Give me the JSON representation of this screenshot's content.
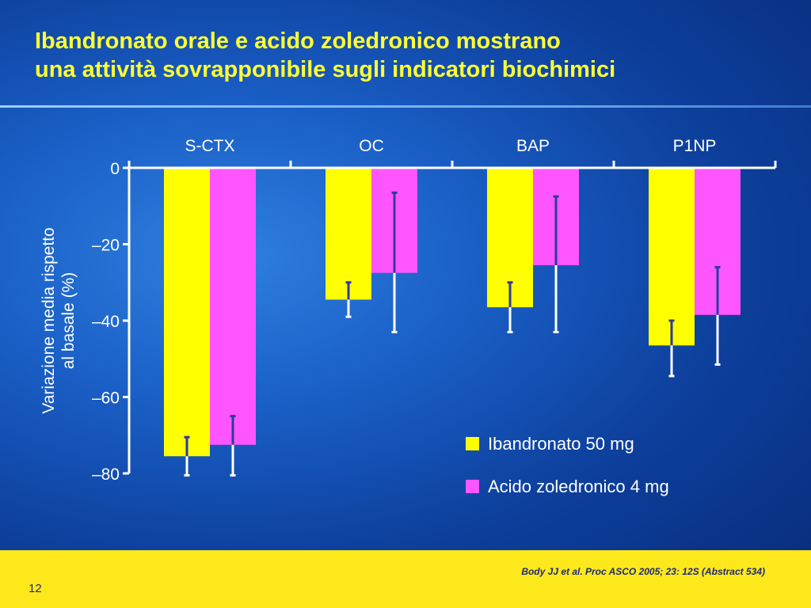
{
  "slide": {
    "title_line1": "Ibandronato orale e acido zoledronico mostrano",
    "title_line2": "una attività sovrapponibile sugli indicatori biochimici",
    "source": "Body JJ et al. Proc ASCO 2005; 23: 12S (Abstract 534)",
    "page_number": "12"
  },
  "colors": {
    "series_1": "#ffff00",
    "series_2": "#ff55ff",
    "error_bar_on_yellow": "#2e3a9e",
    "error_bar_on_blue": "#ffffff",
    "axis": "#ffffff",
    "title": "#ffff33"
  },
  "chart_data": {
    "type": "bar",
    "categories": [
      "S-CTX",
      "OC",
      "BAP",
      "P1NP"
    ],
    "ylabel_line1": "Variazione media rispetto",
    "ylabel_line2": "al basale (%)",
    "ylim": [
      -80,
      0
    ],
    "yticks": [
      0,
      -20,
      -40,
      -60,
      -80
    ],
    "ytick_labels": [
      "0",
      "–20",
      "–40",
      "–60",
      "–80"
    ],
    "grid": false,
    "legend_position": "bottom-right",
    "series": [
      {
        "name": "Ibandronato 50 mg",
        "values": [
          -75.5,
          -34.5,
          -36.5,
          -46.5
        ],
        "error_low": [
          -80.5,
          -39,
          -43,
          -54.5
        ],
        "error_high": [
          -70.5,
          -30,
          -30,
          -40
        ]
      },
      {
        "name": "Acido zoledronico 4 mg",
        "values": [
          -72.5,
          -27.5,
          -25.5,
          -38.5
        ],
        "error_low": [
          -80.5,
          -43,
          -43,
          -51.5
        ],
        "error_high": [
          -65,
          -6.5,
          -7.5,
          -26
        ]
      }
    ]
  }
}
